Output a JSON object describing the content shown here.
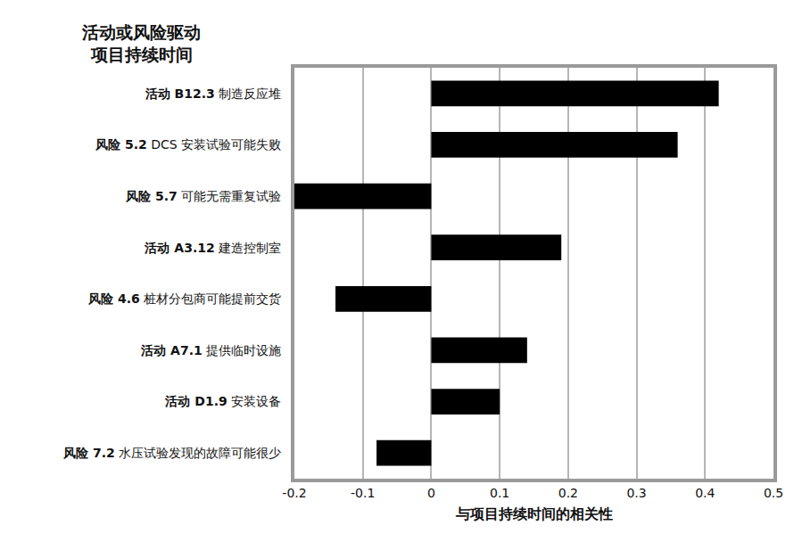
{
  "chart_data": {
    "type": "bar",
    "orientation": "horizontal",
    "title": "活动或风险驱动\n项目持续时间",
    "x_label": "与项目持续时间的相关性",
    "categories": [
      "活动 B12.3 制造反应堆",
      "风险 5.2 DCS 安装试验可能失败",
      "风险 5.7 可能无需重复试验",
      "活动 A3.12 建造控制室",
      "风险 4.6 桩材分包商可能提前交货",
      "活动 A7.1 提供临时设施",
      "活动 D1.9 安装设备",
      "风险 7.2 水压试验发现的故障可能很少"
    ],
    "values": [
      0.42,
      0.36,
      -0.2,
      0.19,
      -0.14,
      0.14,
      0.1,
      -0.08
    ],
    "color": "#000000",
    "xlim": [
      -0.2,
      0.5
    ],
    "xticks": [
      -0.2,
      -0.1,
      0,
      0.1,
      0.2,
      0.3,
      0.4,
      0.5
    ],
    "grid": true
  }
}
